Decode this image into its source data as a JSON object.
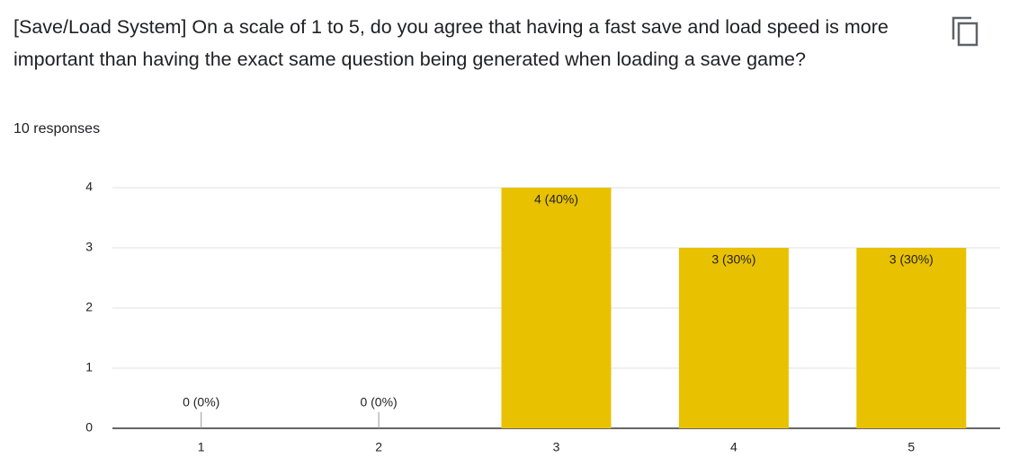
{
  "chart_data": {
    "type": "bar",
    "title": "[Save/Load System] On a scale of 1 to 5, do you agree that having a fast save and load speed is more important than having the exact same question being generated when loading a save game?",
    "subtitle": "10 responses",
    "categories": [
      "1",
      "2",
      "3",
      "4",
      "5"
    ],
    "values": [
      0,
      0,
      4,
      3,
      3
    ],
    "value_labels": [
      "0 (0%)",
      "0 (0%)",
      "4 (40%)",
      "3 (30%)",
      "3 (30%)"
    ],
    "color": "#e8c100",
    "ylim": [
      0,
      4
    ],
    "yticks": [
      0,
      1,
      2,
      3,
      4
    ],
    "grid": true
  }
}
